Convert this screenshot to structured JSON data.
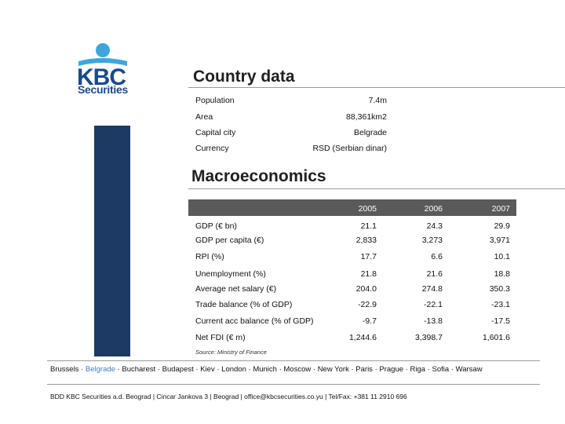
{
  "logo": {
    "brand": "KBC",
    "tagline": "Securities"
  },
  "country_data": {
    "title": "Country data",
    "rows": [
      {
        "label": "Population",
        "value": "7.4m"
      },
      {
        "label": "Area",
        "value": "88,361km2"
      },
      {
        "label": "Capital city",
        "value": "Belgrade"
      },
      {
        "label": "Currency",
        "value": "RSD (Serbian dinar)"
      }
    ]
  },
  "macro": {
    "title": "Macroeconomics",
    "years": [
      "2005",
      "2006",
      "2007"
    ],
    "rows": [
      {
        "label": "GDP (€ bn)",
        "values": [
          "21.1",
          "24.3",
          "29.9"
        ]
      },
      {
        "label": "GDP per capita (€)",
        "values": [
          "2,833",
          "3,273",
          "3,971"
        ]
      },
      {
        "label": "RPI (%)",
        "values": [
          "17.7",
          "6.6",
          "10.1"
        ]
      },
      {
        "label": "Unemployment (%)",
        "values": [
          "21.8",
          "21.6",
          "18.8"
        ]
      },
      {
        "label": "Average net salary (€)",
        "values": [
          "204.0",
          "274.8",
          "350.3"
        ]
      },
      {
        "label": "Trade balance (% of GDP)",
        "values": [
          "-22.9",
          "-22.1",
          "-23.1"
        ]
      },
      {
        "label": "Current acc balance (% of GDP)",
        "values": [
          "-9.7",
          "-13.8",
          "-17.5"
        ]
      },
      {
        "label": "Net FDI (€ m)",
        "values": [
          "1,244.6",
          "3,398.7",
          "1,601.6"
        ]
      }
    ],
    "source": "Source: Ministry of Finance"
  },
  "cities": {
    "items": [
      "Brussels",
      "Belgrade",
      "Bucharest",
      "Budapest",
      "Kiev",
      "London",
      "Munich",
      "Moscow",
      "New York",
      "Paris",
      "Prague",
      "Riga",
      "Sofia",
      "Warsaw"
    ],
    "highlighted": "Belgrade",
    "separator": " · ",
    "highlight_color": "#3c7ec0"
  },
  "footer": {
    "text": "BDD KBC Securities a.d. Beograd | Cincar Jankova 3 | Beograd | office@kbcsecurities.co.yu | Tel/Fax: +381 11 2910 696"
  },
  "colors": {
    "brand_blue": "#1a4a8c",
    "sidebar": "#1c3a63",
    "header_bar": "#5a5a5a"
  }
}
